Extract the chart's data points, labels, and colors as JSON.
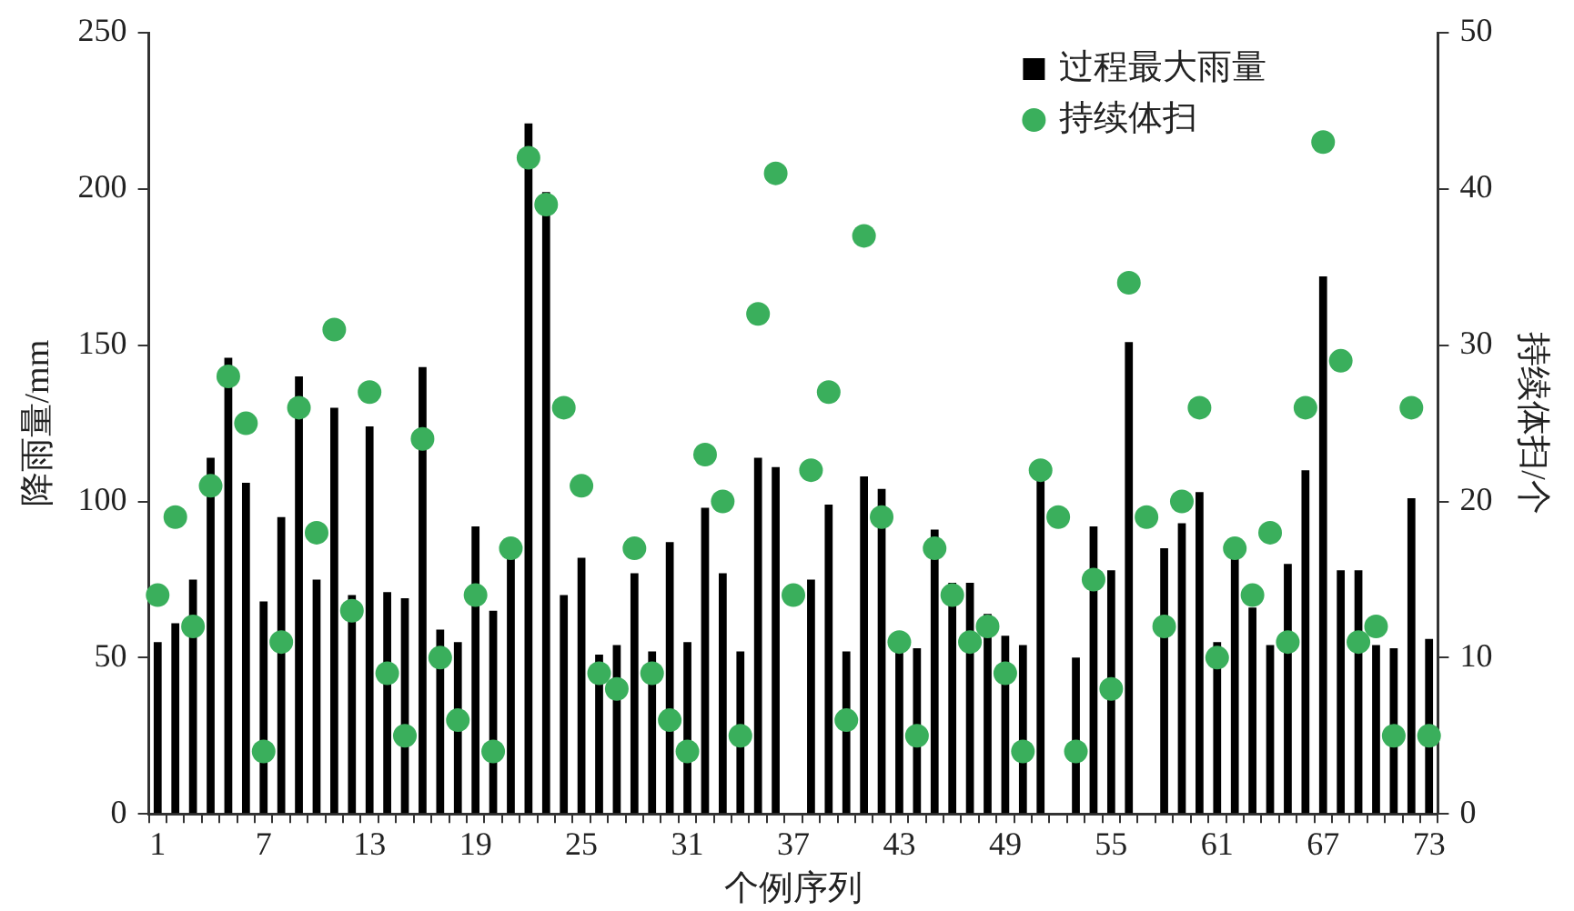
{
  "chart_data": {
    "type": "bar",
    "xlabel": "个例序列",
    "ylabel": "降雨量/mm",
    "y2label": "持续体扫/个",
    "categories": [
      "1",
      null,
      null,
      null,
      null,
      null,
      "7",
      null,
      null,
      null,
      null,
      null,
      "13",
      null,
      null,
      null,
      null,
      null,
      "19",
      null,
      null,
      null,
      null,
      null,
      "25",
      null,
      null,
      null,
      null,
      null,
      "31",
      null,
      null,
      null,
      null,
      null,
      "37",
      null,
      null,
      null,
      null,
      null,
      "43",
      null,
      null,
      null,
      null,
      null,
      "49",
      null,
      null,
      null,
      null,
      null,
      "55",
      null,
      null,
      null,
      null,
      null,
      "61",
      null,
      null,
      null,
      null,
      null,
      "67",
      null,
      null,
      null,
      null,
      null,
      "73"
    ],
    "series": [
      {
        "name": "过程最大雨量",
        "color": "#000000",
        "values": [
          55,
          61,
          75,
          114,
          146,
          106,
          68,
          95,
          140,
          75,
          130,
          70,
          124,
          71,
          69,
          143,
          59,
          55,
          92,
          65,
          82,
          221,
          199,
          70,
          82,
          51,
          54,
          77,
          52,
          87,
          55,
          98,
          77,
          52,
          114,
          111,
          null,
          75,
          99,
          52,
          108,
          104,
          53,
          53,
          91,
          74,
          74,
          64,
          57,
          54,
          107,
          null,
          50,
          92,
          78,
          151,
          null,
          85,
          93,
          103,
          55,
          83,
          66,
          54,
          80,
          110,
          172,
          78,
          78,
          54,
          53,
          101,
          56
        ]
      },
      {
        "name": "持续体扫",
        "type": "scatter",
        "axis": "y2",
        "color": "#3aaf5c",
        "marker": "circle",
        "values": [
          14,
          19,
          12,
          21,
          28,
          25,
          4,
          11,
          26,
          18,
          31,
          13,
          27,
          9,
          5,
          24,
          10,
          6,
          14,
          4,
          17,
          42,
          39,
          26,
          21,
          9,
          8,
          17,
          9,
          6,
          4,
          23,
          20,
          5,
          32,
          41,
          14,
          22,
          27,
          6,
          37,
          19,
          11,
          5,
          17,
          14,
          11,
          12,
          9,
          4,
          22,
          19,
          4,
          15,
          8,
          34,
          19,
          12,
          20,
          26,
          10,
          17,
          14,
          18,
          11,
          26,
          43,
          29,
          11,
          12,
          5,
          26,
          5
        ]
      }
    ],
    "ylim": [
      0,
      250
    ],
    "yticks": [
      0,
      50,
      100,
      150,
      200,
      250
    ],
    "y2lim": [
      0,
      50
    ],
    "y2ticks": [
      0,
      10,
      20,
      30,
      40,
      50
    ],
    "grid": false,
    "legend": "top right"
  }
}
